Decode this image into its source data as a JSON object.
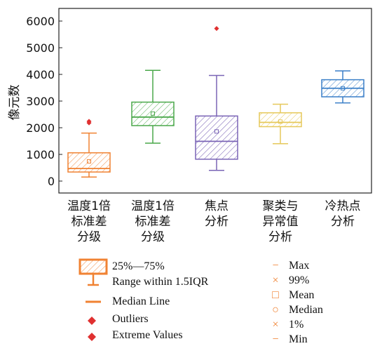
{
  "chart_data": {
    "type": "box",
    "ylabel": "像元数",
    "ylim": [
      -500,
      6500
    ],
    "yticks": [
      0,
      1000,
      2000,
      3000,
      4000,
      5000,
      6000
    ],
    "categories": [
      [
        "温度1倍",
        "标准差",
        "分级"
      ],
      [
        "温度1倍",
        "标准差",
        "分级"
      ],
      [
        "焦点",
        "分析"
      ],
      [
        "聚类与",
        "异常值",
        "分析"
      ],
      [
        "冷热点",
        "分析"
      ]
    ],
    "boxes": [
      {
        "color": "#f08232",
        "min": 150,
        "q1": 340,
        "median": 470,
        "q3": 1060,
        "max": 1800,
        "mean": 740,
        "outliers": [
          2180,
          2240
        ]
      },
      {
        "color": "#4aa84a",
        "min": 1420,
        "q1": 2080,
        "median": 2400,
        "q3": 2960,
        "max": 4150,
        "mean": 2530,
        "outliers": []
      },
      {
        "color": "#7a64b6",
        "min": 400,
        "q1": 820,
        "median": 1490,
        "q3": 2440,
        "max": 3960,
        "mean": 1860,
        "outliers": [
          5720
        ]
      },
      {
        "color": "#e6c85a",
        "min": 1400,
        "q1": 2040,
        "median": 2200,
        "q3": 2560,
        "max": 2880,
        "mean": 2230,
        "outliers": []
      },
      {
        "color": "#3a7fc8",
        "min": 2930,
        "q1": 3160,
        "median": 3480,
        "q3": 3800,
        "max": 4130,
        "mean": 3480,
        "outliers": []
      }
    ]
  },
  "legend": {
    "box_label": "25%—75%",
    "range_label": "Range within 1.5IQR",
    "median_label": "Median Line",
    "outliers_label": "Outliers",
    "extreme_label": "Extreme Values",
    "stats": [
      {
        "symbol": "−",
        "label": "Max"
      },
      {
        "symbol": "×",
        "label": "99%"
      },
      {
        "symbol": "□",
        "label": "Mean"
      },
      {
        "symbol": "○",
        "label": "Median"
      },
      {
        "symbol": "×",
        "label": "1%"
      },
      {
        "symbol": "−",
        "label": "Min"
      }
    ],
    "box_color": "#f08232",
    "outlier_color": "#e03030",
    "stat_color": "#f08232"
  }
}
